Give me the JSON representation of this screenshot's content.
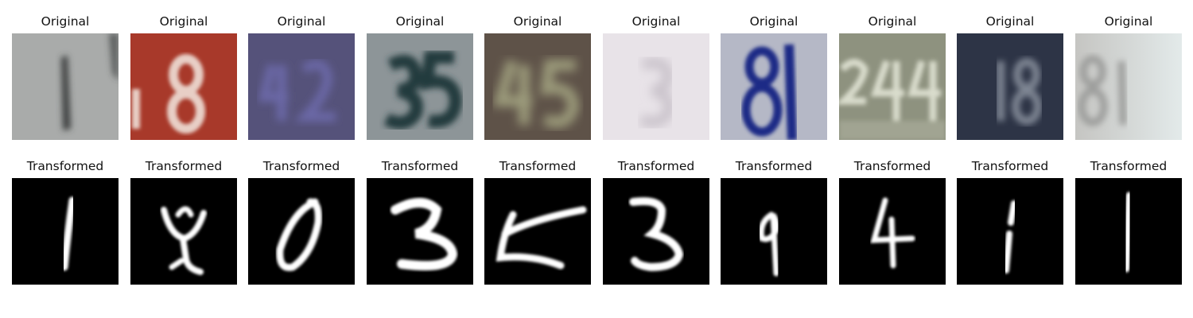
{
  "rows": [
    {
      "label": "Original",
      "panels": [
        {
          "caption": "Original",
          "digit": "1",
          "bg": "#a9abaa",
          "fg": "#3d3f3f"
        },
        {
          "caption": "Original",
          "digit": "18",
          "bg": "#a8392a",
          "fg": "#e8cfc6"
        },
        {
          "caption": "Original",
          "digit": "42",
          "bg": "#55527a",
          "fg": "#6b68a6"
        },
        {
          "caption": "Original",
          "digit": "35",
          "bg": "#8d9598",
          "fg": "#233a3e"
        },
        {
          "caption": "Original",
          "digit": "45",
          "bg": "#5e5248",
          "fg": "#9c9b7c"
        },
        {
          "caption": "Original",
          "digit": "3",
          "bg": "#e8e3e8",
          "fg": "#cbc4cc"
        },
        {
          "caption": "Original",
          "digit": "81",
          "bg": "#b5b8c6",
          "fg": "#1c2a86"
        },
        {
          "caption": "Original",
          "digit": "244",
          "bg": "#8e927f",
          "fg": "#d9dccc"
        },
        {
          "caption": "Original",
          "digit": "18",
          "bg": "#2d3446",
          "fg": "#7e8593"
        },
        {
          "caption": "Original",
          "digit": "81",
          "bg": "#cfd3d3",
          "fg": "#9c9d9b"
        }
      ]
    },
    {
      "label": "Transformed",
      "panels": [
        {
          "caption": "Transformed",
          "digit": "1",
          "bg": "#000000",
          "fg": "#ffffff"
        },
        {
          "caption": "Transformed",
          "digit": "4",
          "bg": "#000000",
          "fg": "#ffffff"
        },
        {
          "caption": "Transformed",
          "digit": "0",
          "bg": "#000000",
          "fg": "#ffffff"
        },
        {
          "caption": "Transformed",
          "digit": "3",
          "bg": "#000000",
          "fg": "#ffffff"
        },
        {
          "caption": "Transformed",
          "digit": "4",
          "bg": "#000000",
          "fg": "#ffffff"
        },
        {
          "caption": "Transformed",
          "digit": "3",
          "bg": "#000000",
          "fg": "#ffffff"
        },
        {
          "caption": "Transformed",
          "digit": "9",
          "bg": "#000000",
          "fg": "#ffffff"
        },
        {
          "caption": "Transformed",
          "digit": "4",
          "bg": "#000000",
          "fg": "#ffffff"
        },
        {
          "caption": "Transformed",
          "digit": "1",
          "bg": "#000000",
          "fg": "#ffffff"
        },
        {
          "caption": "Transformed",
          "digit": "1",
          "bg": "#000000",
          "fg": "#ffffff"
        }
      ]
    }
  ]
}
